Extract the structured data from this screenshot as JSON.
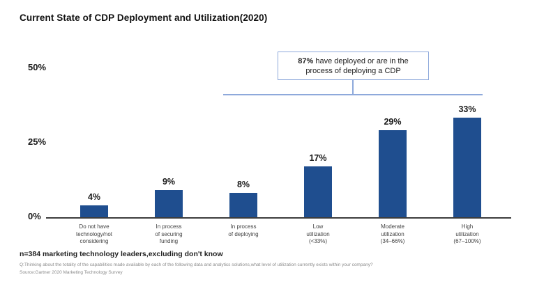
{
  "title": "Current State of CDP Deployment and Utilization(2020)",
  "y_axis": {
    "ticks": [
      "50%",
      "25%",
      "0%"
    ]
  },
  "annotation": {
    "bold": "87%",
    "line1_rest": " have deployed or are in the",
    "line2": "process of deploying a CDP"
  },
  "footer": {
    "sample_note": "n=384 marketing technology leaders,excluding don't know",
    "question": "Q:Thinking about the totality of the capabilities made available by each of the following data and analytics solutions,what level of utilization currently exists within your company?",
    "source": "Source:Gartner 2020 Marketing Technology Survey"
  },
  "chart_data": {
    "type": "bar",
    "title": "Current State of CDP Deployment and Utilization(2020)",
    "categories": [
      "Do not have technology/not considering",
      "In process of securing funding",
      "In process of deploying",
      "Low utilization (<33%)",
      "Moderate utilization (34–66%)",
      "High utilization (67–100%)"
    ],
    "category_label_lines": [
      [
        "Do not have",
        "technology/not",
        "considering"
      ],
      [
        "In process",
        "of securing",
        "funding"
      ],
      [
        "In process",
        "of deploying"
      ],
      [
        "Low",
        "utilization",
        "(<33%)"
      ],
      [
        "Moderate",
        "utilization",
        "(34–66%)"
      ],
      [
        "High",
        "utilization",
        "(67–100%)"
      ]
    ],
    "values": [
      4,
      9,
      8,
      17,
      29,
      33
    ],
    "value_labels": [
      "4%",
      "9%",
      "8%",
      "17%",
      "29%",
      "33%"
    ],
    "xlabel": "",
    "ylabel": "",
    "ylim": [
      0,
      50
    ],
    "ytick_values": [
      0,
      25,
      50
    ],
    "ytick_labels": [
      "0%",
      "25%",
      "50%"
    ],
    "grid": false,
    "legend": null,
    "bar_color": "#1f4e8f",
    "accent_line_color": "#8ea9db",
    "annotation": "87% have deployed or are in the process of deploying a CDP",
    "annotation_covers": [
      "In process of deploying",
      "Low utilization (<33%)",
      "Moderate utilization (34–66%)",
      "High utilization (67–100%)"
    ]
  }
}
